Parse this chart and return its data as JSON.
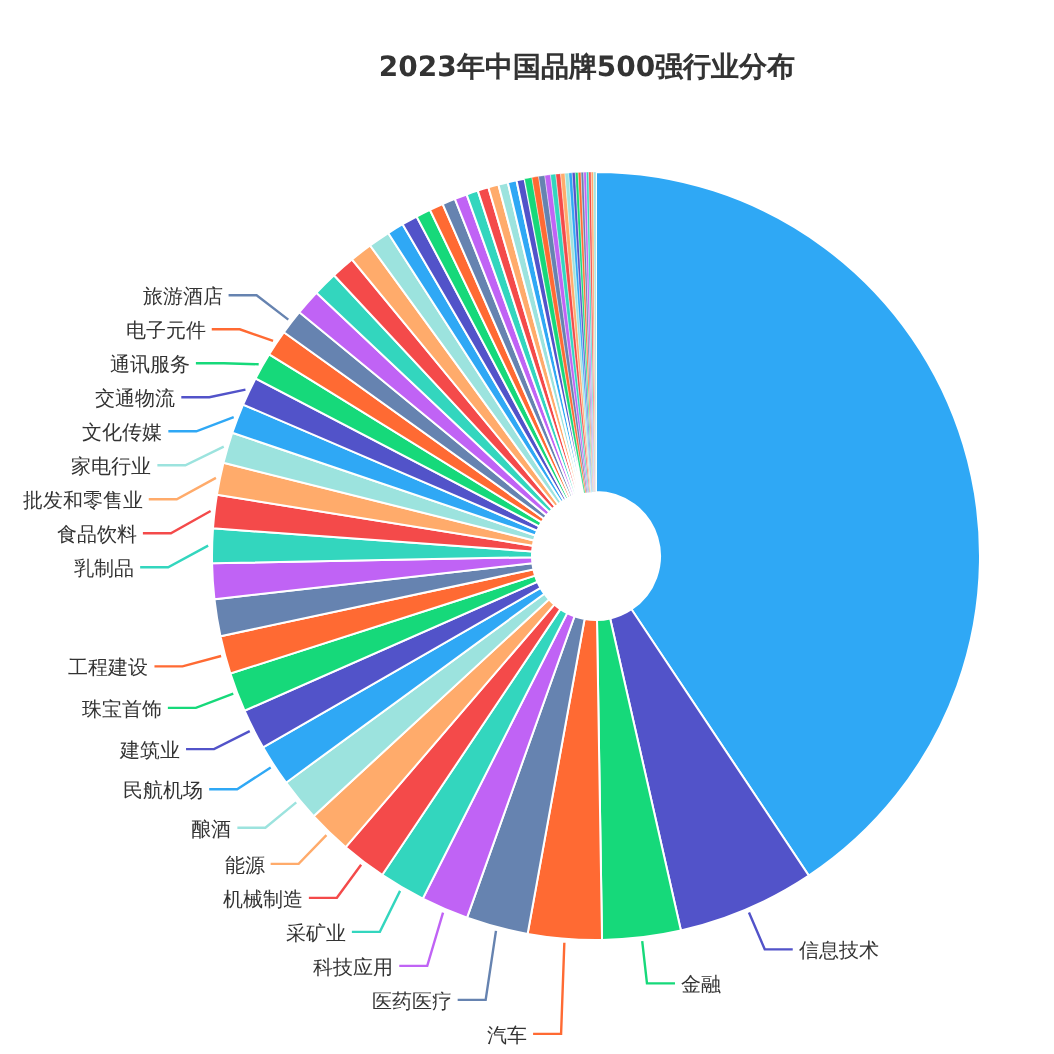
{
  "chart_data": {
    "type": "donut",
    "title": "2023年中国品牌500强行业分布",
    "categories": [
      null,
      "信息技术",
      "金融",
      "汽车",
      "医药医疗",
      "科技应用",
      "采矿业",
      "机械制造",
      "能源",
      "酿酒",
      "民航机场",
      "建筑业",
      "珠宝首饰",
      "工程建设",
      null,
      null,
      "乳制品",
      "食品饮料",
      "批发和零售业",
      "家电行业",
      "文化传媒",
      "交通物流",
      "通讯服务",
      "电子元件",
      "旅游酒店",
      null,
      null,
      null,
      null,
      null,
      null,
      null,
      null,
      null,
      null,
      null,
      null,
      null,
      null,
      null,
      null,
      null,
      null,
      null,
      null,
      null,
      null,
      null,
      null,
      null,
      null,
      null,
      null,
      null,
      null,
      null,
      null,
      null,
      null,
      null
    ],
    "values": [
      40.65,
      5.8,
      3.3,
      3.1,
      2.6,
      2.0,
      1.95,
      1.9,
      1.85,
      1.8,
      1.75,
      1.7,
      1.65,
      1.6,
      1.55,
      1.5,
      1.45,
      1.4,
      1.35,
      1.3,
      1.25,
      1.2,
      1.15,
      1.1,
      1.05,
      1.07,
      1.03,
      0.99,
      0.95,
      0.91,
      0.7,
      0.66,
      0.62,
      0.58,
      0.55,
      0.52,
      0.49,
      0.46,
      0.43,
      0.4,
      0.37,
      0.34,
      0.31,
      0.28,
      0.26,
      0.24,
      0.22,
      0.2,
      0.18,
      0.16,
      0.14,
      0.13,
      0.12,
      0.12,
      0.11,
      0.11,
      0.1,
      0.1,
      0.1,
      0.1
    ],
    "colors": [
      "#2fa8f5",
      "#5253c9",
      "#16d97a",
      "#ff6a33",
      "#6683b0",
      "#c063f5",
      "#33d6be",
      "#f44a4a",
      "#ffab6b",
      "#9ce3de",
      "#2fa8f5",
      "#5253c9",
      "#16d97a",
      "#ff6a33",
      "#6683b0",
      "#c063f5",
      "#33d6be",
      "#f44a4a",
      "#ffab6b",
      "#9ce3de",
      "#2fa8f5",
      "#5253c9",
      "#16d97a",
      "#ff6a33",
      "#6683b0",
      "#c063f5",
      "#33d6be",
      "#f44a4a",
      "#ffab6b",
      "#9ce3de",
      "#2fa8f5",
      "#5253c9",
      "#16d97a",
      "#ff6a33",
      "#6683b0",
      "#c063f5",
      "#33d6be",
      "#f44a4a",
      "#ffab6b",
      "#9ce3de",
      "#2fa8f5",
      "#5253c9",
      "#16d97a",
      "#ff6a33",
      "#6683b0",
      "#c063f5",
      "#33d6be",
      "#f44a4a",
      "#ffab6b",
      "#9ce3de",
      "#2fa8f5",
      "#5253c9",
      "#16d97a",
      "#ff6a33",
      "#6683b0",
      "#c063f5",
      "#33d6be",
      "#f44a4a",
      "#ffab6b",
      "#9ce3de"
    ]
  }
}
